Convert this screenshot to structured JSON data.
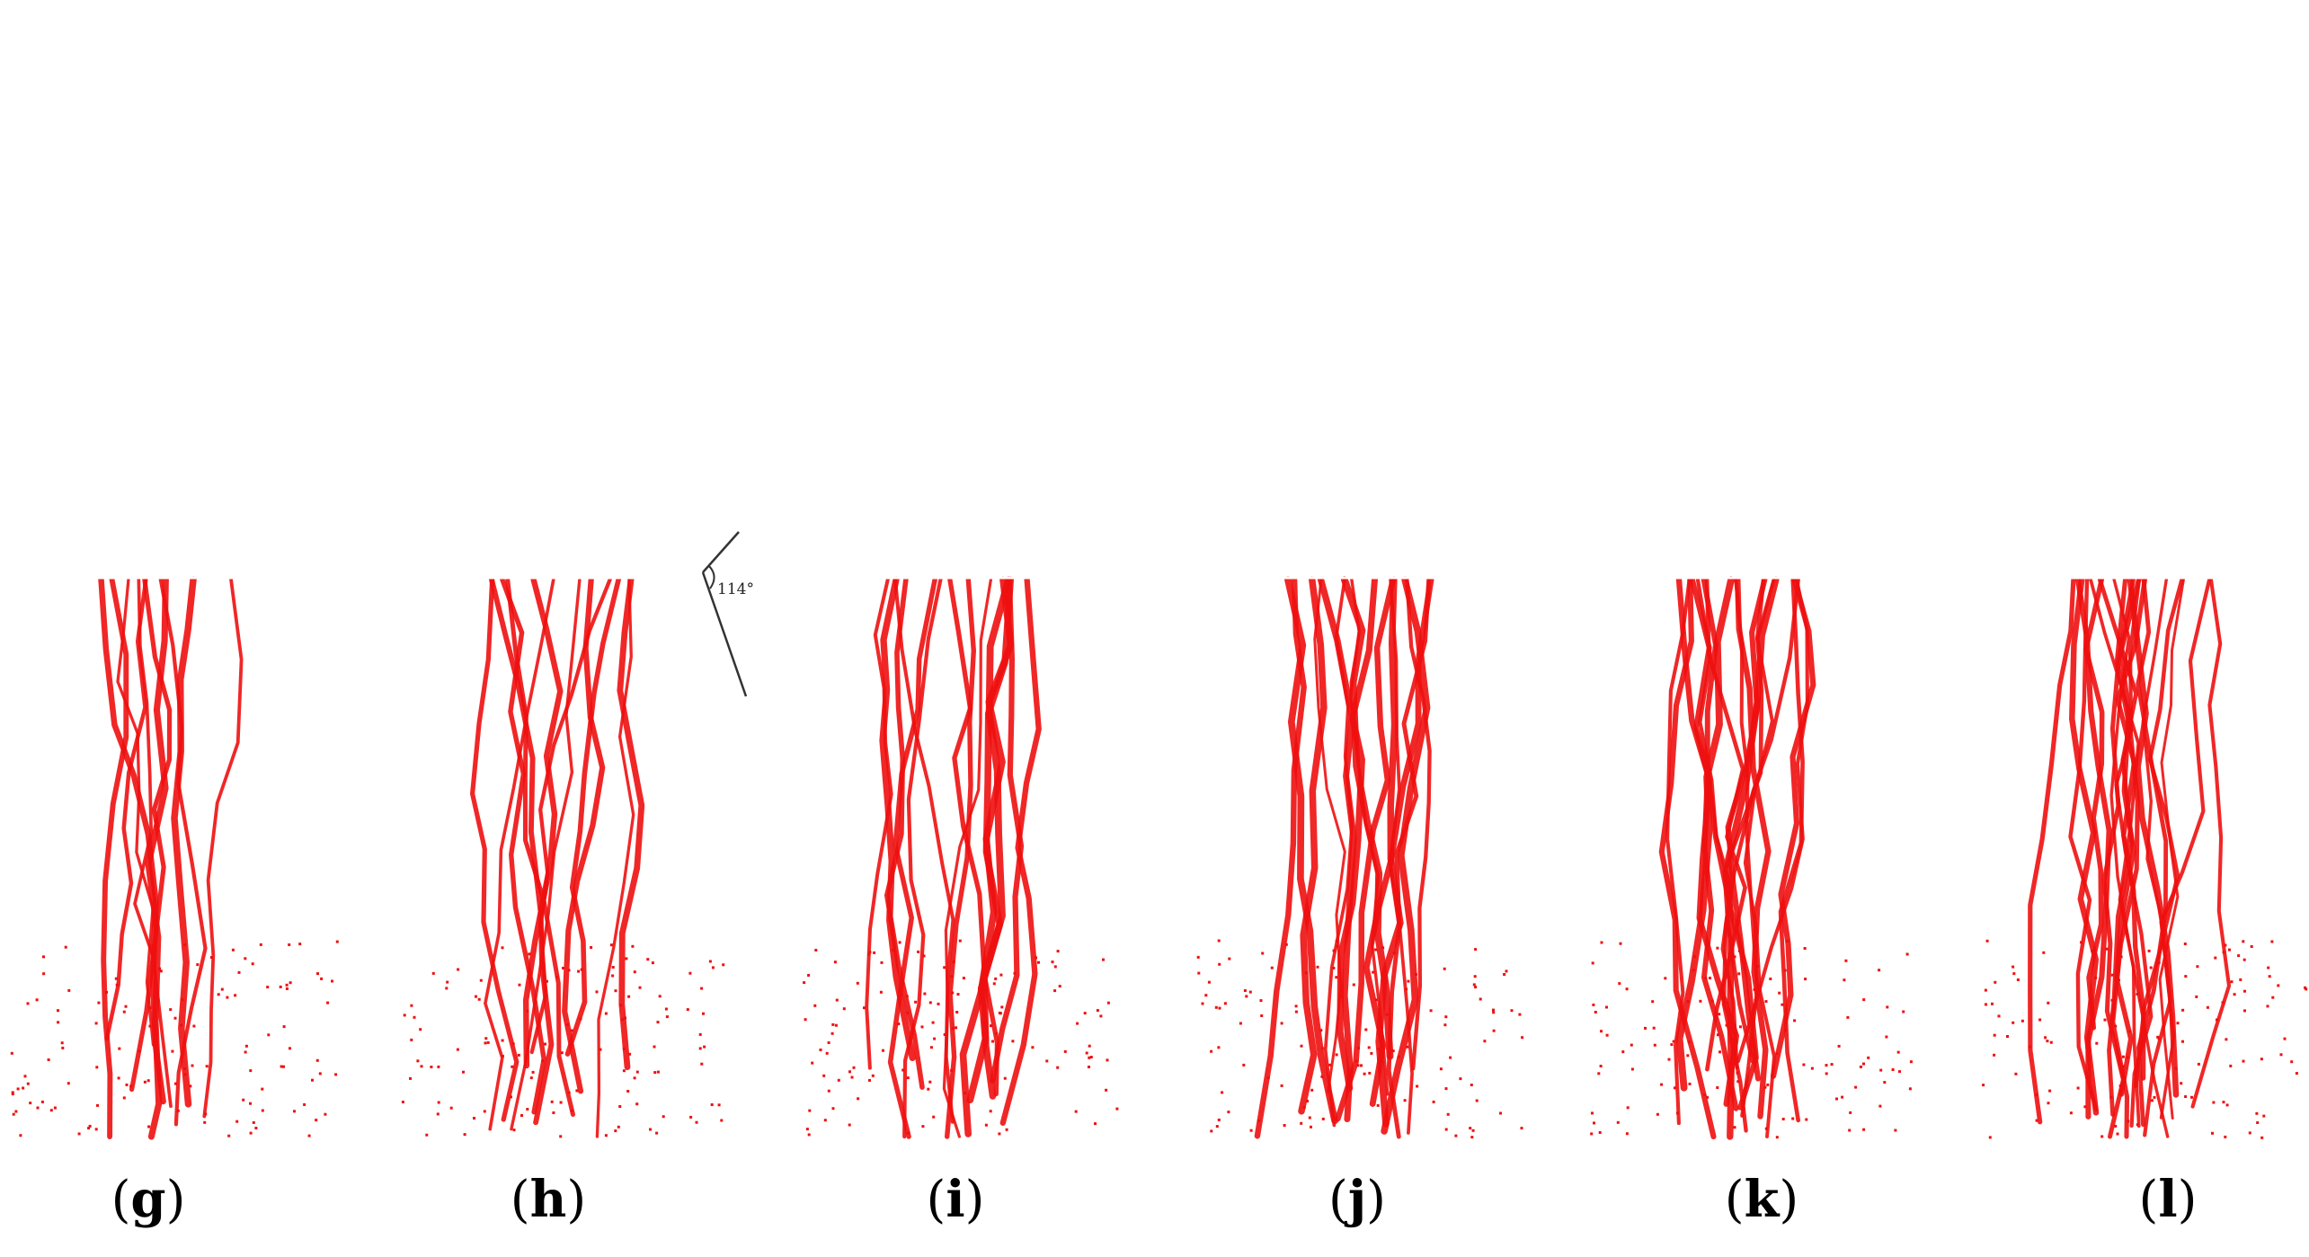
{
  "figure": {
    "panels": [
      {
        "label": "(g)",
        "letter": "g",
        "top_color": "#1010e8",
        "bottom_color": "#ee1010",
        "angle_label": ""
      },
      {
        "label": "(h)",
        "letter": "h",
        "top_color": "#1010e8",
        "bottom_color": "#ee1010",
        "angle_label": "114°"
      },
      {
        "label": "(i)",
        "letter": "i",
        "top_color": "#1010e8",
        "bottom_color": "#ee1010",
        "angle_label": ""
      },
      {
        "label": "(j)",
        "letter": "j",
        "top_color": "#1010e8",
        "bottom_color": "#ee1010",
        "angle_label": ""
      },
      {
        "label": "(k)",
        "letter": "k",
        "top_color": "#1010e8",
        "bottom_color": "#ee1010",
        "angle_label": ""
      },
      {
        "label": "(l)",
        "letter": "l",
        "top_color": "#1010e8",
        "bottom_color": "#ee1010",
        "angle_label": ""
      }
    ],
    "colors": {
      "upper_specimen": "#1010e8",
      "lower_specimen": "#ee1010",
      "annotation_line": "#333333",
      "background": "#ffffff"
    }
  }
}
